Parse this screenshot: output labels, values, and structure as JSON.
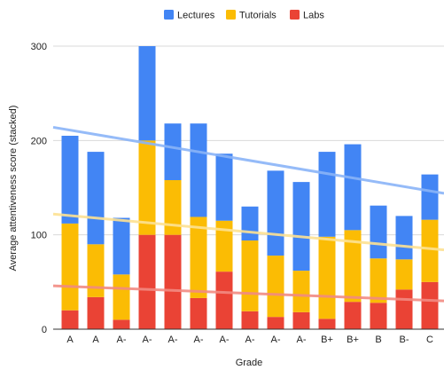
{
  "chart_data": {
    "type": "bar",
    "stacked": true,
    "categories": [
      "A",
      "A",
      "A-",
      "A-",
      "A-",
      "A-",
      "A-",
      "A-",
      "A-",
      "A-",
      "B+",
      "B+",
      "B",
      "B-",
      "C"
    ],
    "series": [
      {
        "name": "Labs",
        "color": "#ea4335",
        "values": [
          20,
          34,
          10,
          100,
          100,
          33,
          61,
          19,
          13,
          18,
          11,
          29,
          28,
          42,
          50
        ]
      },
      {
        "name": "Tutorials",
        "color": "#fbbc04",
        "values": [
          92,
          56,
          48,
          100,
          58,
          86,
          54,
          75,
          65,
          44,
          87,
          76,
          47,
          32,
          66
        ]
      },
      {
        "name": "Lectures",
        "color": "#4285f4",
        "values": [
          93,
          98,
          60,
          100,
          60,
          99,
          71,
          36,
          90,
          94,
          90,
          91,
          56,
          46,
          48
        ]
      }
    ],
    "trendlines": [
      {
        "series": "Lectures",
        "color": "#8ab4f8",
        "start": 214,
        "end": 144
      },
      {
        "series": "Tutorials",
        "color": "#fde293",
        "start": 122,
        "end": 84
      },
      {
        "series": "Labs",
        "color": "#f28b82",
        "start": 46,
        "end": 30
      }
    ],
    "legend_order": [
      "Lectures",
      "Tutorials",
      "Labs"
    ],
    "legend_position": "top",
    "title": "",
    "xlabel": "Grade",
    "ylabel": "Average attentiveness score (stacked)",
    "ylim": [
      0,
      300
    ],
    "yticks": [
      0,
      100,
      200,
      300
    ],
    "grid": true
  }
}
